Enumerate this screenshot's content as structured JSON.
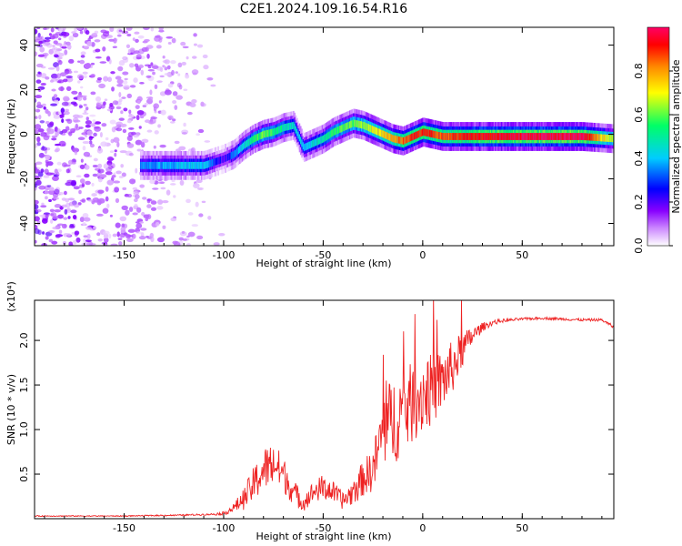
{
  "title": "C2E1.2024.109.16.54.R16",
  "chart_data": [
    {
      "type": "heatmap",
      "xlabel": "Height of straight line (km)",
      "ylabel": "Frequency (Hz)",
      "xlim": [
        -195,
        96
      ],
      "ylim": [
        -50,
        48
      ],
      "xticks": [
        -150,
        -100,
        -50,
        0,
        50
      ],
      "yticks": [
        -40,
        -20,
        0,
        20,
        40
      ],
      "colorbar": {
        "label": "Normalized spectral amplitude",
        "range": [
          0.0,
          1.0
        ],
        "ticks": [
          0.0,
          0.2,
          0.4,
          0.6,
          0.8
        ],
        "tick_labels": [
          "0.0",
          "0.2",
          "0.4",
          "0.6",
          "0.8"
        ],
        "colormap": [
          "#ffffff",
          "#cc88ff",
          "#8800ff",
          "#0000ff",
          "#00ccff",
          "#00ff66",
          "#ffff00",
          "#ff8800",
          "#ff0000",
          "#ff0066"
        ]
      },
      "ridge": {
        "x": [
          -140,
          -130,
          -120,
          -110,
          -100,
          -95,
          -90,
          -85,
          -80,
          -75,
          -70,
          -65,
          -60,
          -55,
          -50,
          -45,
          -40,
          -35,
          -30,
          -25,
          -20,
          -15,
          -10,
          -5,
          0,
          5,
          10,
          20,
          40,
          60,
          80,
          96
        ],
        "y": [
          -14,
          -14,
          -14,
          -14,
          -11,
          -9,
          -5,
          -2,
          0,
          1,
          3,
          4,
          -6,
          -4,
          -2,
          1,
          3,
          5,
          4,
          2,
          0,
          -2,
          -3,
          -1,
          1,
          0,
          -1,
          -1,
          -1,
          -1,
          -1,
          -2
        ],
        "amplitude": [
          0.35,
          0.38,
          0.4,
          0.42,
          0.2,
          0.35,
          0.45,
          0.55,
          0.6,
          0.55,
          0.5,
          0.45,
          0.4,
          0.45,
          0.5,
          0.55,
          0.6,
          0.6,
          0.65,
          0.7,
          0.75,
          0.8,
          0.85,
          0.9,
          0.9,
          0.88,
          0.85,
          0.9,
          0.95,
          0.97,
          0.98,
          0.6
        ]
      }
    },
    {
      "type": "line",
      "xlabel": "Height of straight line (km)",
      "ylabel": "SNR (10 * v/v)",
      "yscale_label": "(x10⁴)",
      "xlim": [
        -195,
        96
      ],
      "ylim": [
        0,
        2.45
      ],
      "xticks": [
        -150,
        -100,
        -50,
        0,
        50
      ],
      "yticks": [
        0.5,
        1.0,
        1.5,
        2.0
      ],
      "ytick_labels": [
        "0.5",
        "1.0",
        "1.5",
        "2.0"
      ],
      "color": "#ee2222",
      "series": [
        {
          "x": [
            -195,
            -150,
            -120,
            -105,
            -100,
            -95,
            -90,
            -85,
            -80,
            -75,
            -70,
            -65,
            -60,
            -55,
            -50,
            -45,
            -40,
            -35,
            -30,
            -25,
            -22,
            -20,
            -15,
            -10,
            -5,
            0,
            5,
            10,
            15,
            20,
            25,
            30,
            35,
            40,
            50,
            60,
            70,
            80,
            90,
            96
          ],
          "y": [
            0.03,
            0.03,
            0.04,
            0.05,
            0.06,
            0.12,
            0.22,
            0.38,
            0.55,
            0.62,
            0.5,
            0.3,
            0.18,
            0.3,
            0.35,
            0.3,
            0.2,
            0.3,
            0.45,
            0.55,
            0.8,
            1.0,
            1.1,
            1.2,
            1.3,
            1.4,
            1.45,
            1.55,
            1.7,
            1.9,
            2.05,
            2.15,
            2.2,
            2.22,
            2.24,
            2.25,
            2.24,
            2.23,
            2.23,
            2.15
          ],
          "noise": [
            0.005,
            0.005,
            0.008,
            0.01,
            0.02,
            0.05,
            0.12,
            0.2,
            0.25,
            0.25,
            0.2,
            0.15,
            0.1,
            0.12,
            0.15,
            0.12,
            0.1,
            0.15,
            0.2,
            0.25,
            0.35,
            0.45,
            0.5,
            0.5,
            0.45,
            0.45,
            0.4,
            0.35,
            0.3,
            0.2,
            0.1,
            0.05,
            0.03,
            0.02,
            0.015,
            0.015,
            0.015,
            0.015,
            0.015,
            0.02
          ]
        }
      ]
    }
  ]
}
